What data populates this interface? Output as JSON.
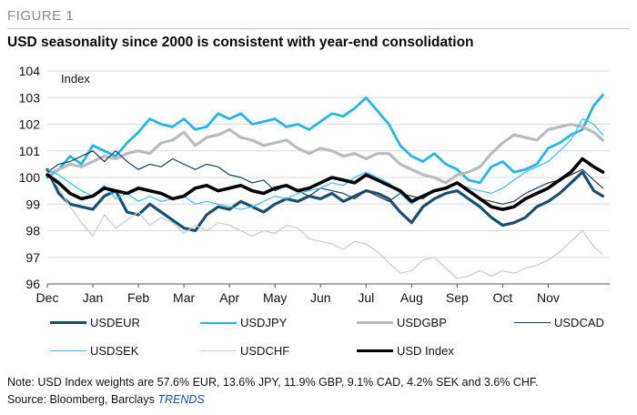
{
  "figure_label": "FIGURE 1",
  "title": "USD seasonality since 2000 is consistent with year-end consolidation",
  "note": "Note: USD Index weights are 57.6% EUR, 13.6% JPY, 11.9% GBP, 9.1% CAD, 4.2% SEK and 3.6% CHF.",
  "source_prefix": "Source: Bloomberg, Barclays ",
  "source_brand": "TRENDS",
  "chart_data": {
    "type": "line",
    "ylabel": "Index",
    "ylim": [
      96,
      104
    ],
    "yticks": [
      "96",
      "97",
      "98",
      "99",
      "100",
      "101",
      "102",
      "103",
      "104"
    ],
    "xlim": [
      0,
      12.35
    ],
    "xtick_labels": [
      "Dec",
      "Jan",
      "Feb",
      "Mar",
      "Apr",
      "May",
      "Jun",
      "Jul",
      "Aug",
      "Sep",
      "Oct",
      "Nov"
    ],
    "grid": "horizontal",
    "legend_position": "bottom",
    "series": [
      {
        "name": "USDEUR",
        "color": "#1a4f72",
        "width": 3.2,
        "x": [
          0,
          0.25,
          0.5,
          0.75,
          1.0,
          1.25,
          1.5,
          1.75,
          2.0,
          2.25,
          2.5,
          2.75,
          3.0,
          3.25,
          3.5,
          3.75,
          4.0,
          4.25,
          4.5,
          4.75,
          5.0,
          5.25,
          5.5,
          5.75,
          6.0,
          6.25,
          6.5,
          6.75,
          7.0,
          7.25,
          7.5,
          7.75,
          8.0,
          8.25,
          8.5,
          8.75,
          9.0,
          9.25,
          9.5,
          9.75,
          10.0,
          10.25,
          10.5,
          10.75,
          11.0,
          11.25,
          11.5,
          11.75,
          12.0,
          12.2
        ],
        "y": [
          100.3,
          99.4,
          99.0,
          98.9,
          98.8,
          99.3,
          99.5,
          98.7,
          98.6,
          99.0,
          98.7,
          98.4,
          98.1,
          98.0,
          98.6,
          98.9,
          98.8,
          99.1,
          98.9,
          98.7,
          99.0,
          99.2,
          99.1,
          99.3,
          99.2,
          99.4,
          99.1,
          99.3,
          99.5,
          99.4,
          99.2,
          98.7,
          98.3,
          98.9,
          99.2,
          99.4,
          99.5,
          99.2,
          98.9,
          98.5,
          98.2,
          98.3,
          98.5,
          98.9,
          99.1,
          99.4,
          99.8,
          100.2,
          99.5,
          99.3
        ]
      },
      {
        "name": "USDJPY",
        "color": "#29b4e8",
        "width": 2.8,
        "x": [
          0,
          0.25,
          0.5,
          0.75,
          1.0,
          1.25,
          1.5,
          1.75,
          2.0,
          2.25,
          2.5,
          2.75,
          3.0,
          3.25,
          3.5,
          3.75,
          4.0,
          4.25,
          4.5,
          4.75,
          5.0,
          5.25,
          5.5,
          5.75,
          6.0,
          6.25,
          6.5,
          6.75,
          7.0,
          7.25,
          7.5,
          7.75,
          8.0,
          8.25,
          8.5,
          8.75,
          9.0,
          9.25,
          9.5,
          9.75,
          10.0,
          10.25,
          10.5,
          10.75,
          11.0,
          11.25,
          11.5,
          11.75,
          12.0,
          12.2
        ],
        "y": [
          100.0,
          100.3,
          100.8,
          100.5,
          101.2,
          101.0,
          100.8,
          101.3,
          101.7,
          102.2,
          102.0,
          101.9,
          102.2,
          101.8,
          101.9,
          102.4,
          102.2,
          102.4,
          102.0,
          102.1,
          102.2,
          101.9,
          102.0,
          101.8,
          102.1,
          102.4,
          102.3,
          102.6,
          103.0,
          102.5,
          102.0,
          101.2,
          100.8,
          100.6,
          100.9,
          100.5,
          100.3,
          99.9,
          99.8,
          100.4,
          100.6,
          100.2,
          100.3,
          100.5,
          101.1,
          101.3,
          101.6,
          101.8,
          102.7,
          103.1
        ]
      },
      {
        "name": "USDGBP",
        "color": "#b9bcbf",
        "width": 3.2,
        "x": [
          0,
          0.25,
          0.5,
          0.75,
          1.0,
          1.25,
          1.5,
          1.75,
          2.0,
          2.25,
          2.5,
          2.75,
          3.0,
          3.25,
          3.5,
          3.75,
          4.0,
          4.25,
          4.5,
          4.75,
          5.0,
          5.25,
          5.5,
          5.75,
          6.0,
          6.25,
          6.5,
          6.75,
          7.0,
          7.25,
          7.5,
          7.75,
          8.0,
          8.25,
          8.5,
          8.75,
          9.0,
          9.25,
          9.5,
          9.75,
          10.0,
          10.25,
          10.5,
          10.75,
          11.0,
          11.25,
          11.5,
          11.75,
          12.0,
          12.2
        ],
        "y": [
          100.1,
          100.3,
          100.5,
          100.4,
          100.6,
          100.8,
          100.7,
          100.9,
          101.0,
          100.9,
          101.3,
          101.4,
          101.7,
          101.2,
          101.5,
          101.6,
          101.8,
          101.5,
          101.4,
          101.2,
          101.3,
          101.4,
          101.1,
          100.9,
          101.1,
          101.0,
          100.8,
          100.9,
          100.7,
          100.9,
          100.9,
          100.5,
          100.3,
          100.1,
          100.0,
          99.8,
          100.1,
          100.2,
          100.4,
          100.9,
          101.3,
          101.6,
          101.5,
          101.4,
          101.8,
          101.9,
          102.0,
          101.9,
          101.7,
          101.4
        ]
      },
      {
        "name": "USDCAD",
        "color": "#1f3e5a",
        "width": 1.2,
        "x": [
          0,
          0.25,
          0.5,
          0.75,
          1.0,
          1.25,
          1.5,
          1.75,
          2.0,
          2.25,
          2.5,
          2.75,
          3.0,
          3.25,
          3.5,
          3.75,
          4.0,
          4.25,
          4.5,
          4.75,
          5.0,
          5.25,
          5.5,
          5.75,
          6.0,
          6.25,
          6.5,
          6.75,
          7.0,
          7.25,
          7.5,
          7.75,
          8.0,
          8.25,
          8.5,
          8.75,
          9.0,
          9.25,
          9.5,
          9.75,
          10.0,
          10.25,
          10.5,
          10.75,
          11.0,
          11.25,
          11.5,
          11.75,
          12.0,
          12.2
        ],
        "y": [
          100.2,
          100.5,
          100.6,
          100.8,
          101.0,
          100.6,
          101.0,
          100.6,
          100.3,
          100.5,
          100.4,
          100.7,
          100.5,
          100.3,
          100.5,
          100.4,
          100.1,
          100.0,
          99.8,
          99.9,
          99.5,
          99.7,
          99.5,
          99.3,
          99.6,
          99.5,
          99.4,
          99.2,
          99.5,
          99.3,
          99.1,
          99.4,
          99.3,
          99.2,
          99.5,
          99.6,
          99.8,
          99.5,
          99.2,
          99.1,
          99.0,
          99.1,
          99.4,
          99.6,
          99.8,
          99.9,
          100.1,
          100.3,
          99.9,
          99.6
        ]
      },
      {
        "name": "USDSEK",
        "color": "#3fbdea",
        "width": 1.2,
        "x": [
          0,
          0.25,
          0.5,
          0.75,
          1.0,
          1.25,
          1.5,
          1.75,
          2.0,
          2.25,
          2.5,
          2.75,
          3.0,
          3.25,
          3.5,
          3.75,
          4.0,
          4.25,
          4.5,
          4.75,
          5.0,
          5.25,
          5.5,
          5.75,
          6.0,
          6.25,
          6.5,
          6.75,
          7.0,
          7.25,
          7.5,
          7.75,
          8.0,
          8.25,
          8.5,
          8.75,
          9.0,
          9.25,
          9.5,
          9.75,
          10.0,
          10.25,
          10.5,
          10.75,
          11.0,
          11.25,
          11.5,
          11.75,
          12.0,
          12.2
        ],
        "y": [
          100.3,
          100.1,
          99.8,
          99.5,
          99.3,
          99.7,
          99.2,
          99.4,
          99.1,
          99.3,
          99.1,
          99.2,
          99.3,
          99.0,
          99.1,
          99.0,
          98.9,
          98.8,
          98.9,
          99.1,
          99.3,
          99.2,
          99.4,
          99.5,
          99.6,
          99.8,
          99.7,
          100.0,
          100.2,
          100.0,
          99.8,
          99.4,
          99.0,
          99.3,
          99.5,
          99.6,
          99.8,
          99.6,
          99.5,
          99.4,
          99.6,
          99.9,
          100.2,
          100.4,
          100.6,
          101.0,
          101.4,
          102.2,
          102.0,
          101.6
        ]
      },
      {
        "name": "USDCHF",
        "color": "#c4ced6",
        "width": 1.2,
        "x": [
          0,
          0.25,
          0.5,
          0.75,
          1.0,
          1.25,
          1.5,
          1.75,
          2.0,
          2.25,
          2.5,
          2.75,
          3.0,
          3.25,
          3.5,
          3.75,
          4.0,
          4.25,
          4.5,
          4.75,
          5.0,
          5.25,
          5.5,
          5.75,
          6.0,
          6.25,
          6.5,
          6.75,
          7.0,
          7.25,
          7.5,
          7.75,
          8.0,
          8.25,
          8.5,
          8.75,
          9.0,
          9.25,
          9.5,
          9.75,
          10.0,
          10.25,
          10.5,
          10.75,
          11.0,
          11.25,
          11.5,
          11.75,
          12.0,
          12.2
        ],
        "y": [
          100.2,
          99.6,
          98.9,
          98.3,
          97.8,
          98.6,
          98.1,
          98.4,
          98.7,
          98.2,
          98.5,
          98.3,
          97.9,
          98.2,
          98.0,
          98.3,
          98.2,
          98.0,
          97.8,
          98.0,
          97.9,
          98.2,
          98.1,
          97.7,
          97.6,
          97.5,
          97.3,
          97.6,
          97.5,
          97.2,
          96.8,
          96.4,
          96.5,
          96.9,
          97.0,
          96.6,
          96.2,
          96.3,
          96.5,
          96.3,
          96.5,
          96.4,
          96.6,
          96.7,
          96.9,
          97.2,
          97.6,
          98.0,
          97.4,
          97.1
        ]
      },
      {
        "name": "USD Index",
        "color": "#000000",
        "width": 3.6,
        "x": [
          0,
          0.25,
          0.5,
          0.75,
          1.0,
          1.25,
          1.5,
          1.75,
          2.0,
          2.25,
          2.5,
          2.75,
          3.0,
          3.25,
          3.5,
          3.75,
          4.0,
          4.25,
          4.5,
          4.75,
          5.0,
          5.25,
          5.5,
          5.75,
          6.0,
          6.25,
          6.5,
          6.75,
          7.0,
          7.25,
          7.5,
          7.75,
          8.0,
          8.25,
          8.5,
          8.75,
          9.0,
          9.25,
          9.5,
          9.75,
          10.0,
          10.25,
          10.5,
          10.75,
          11.0,
          11.25,
          11.5,
          11.75,
          12.0,
          12.2
        ],
        "y": [
          100.1,
          99.8,
          99.4,
          99.2,
          99.3,
          99.6,
          99.5,
          99.4,
          99.6,
          99.5,
          99.4,
          99.2,
          99.3,
          99.6,
          99.7,
          99.5,
          99.6,
          99.7,
          99.5,
          99.4,
          99.6,
          99.7,
          99.5,
          99.6,
          99.8,
          100.0,
          99.9,
          99.8,
          100.1,
          99.9,
          99.7,
          99.5,
          99.1,
          99.3,
          99.5,
          99.6,
          99.8,
          99.5,
          99.2,
          98.9,
          98.8,
          98.9,
          99.2,
          99.4,
          99.6,
          99.9,
          100.2,
          100.7,
          100.4,
          100.2
        ]
      }
    ]
  }
}
